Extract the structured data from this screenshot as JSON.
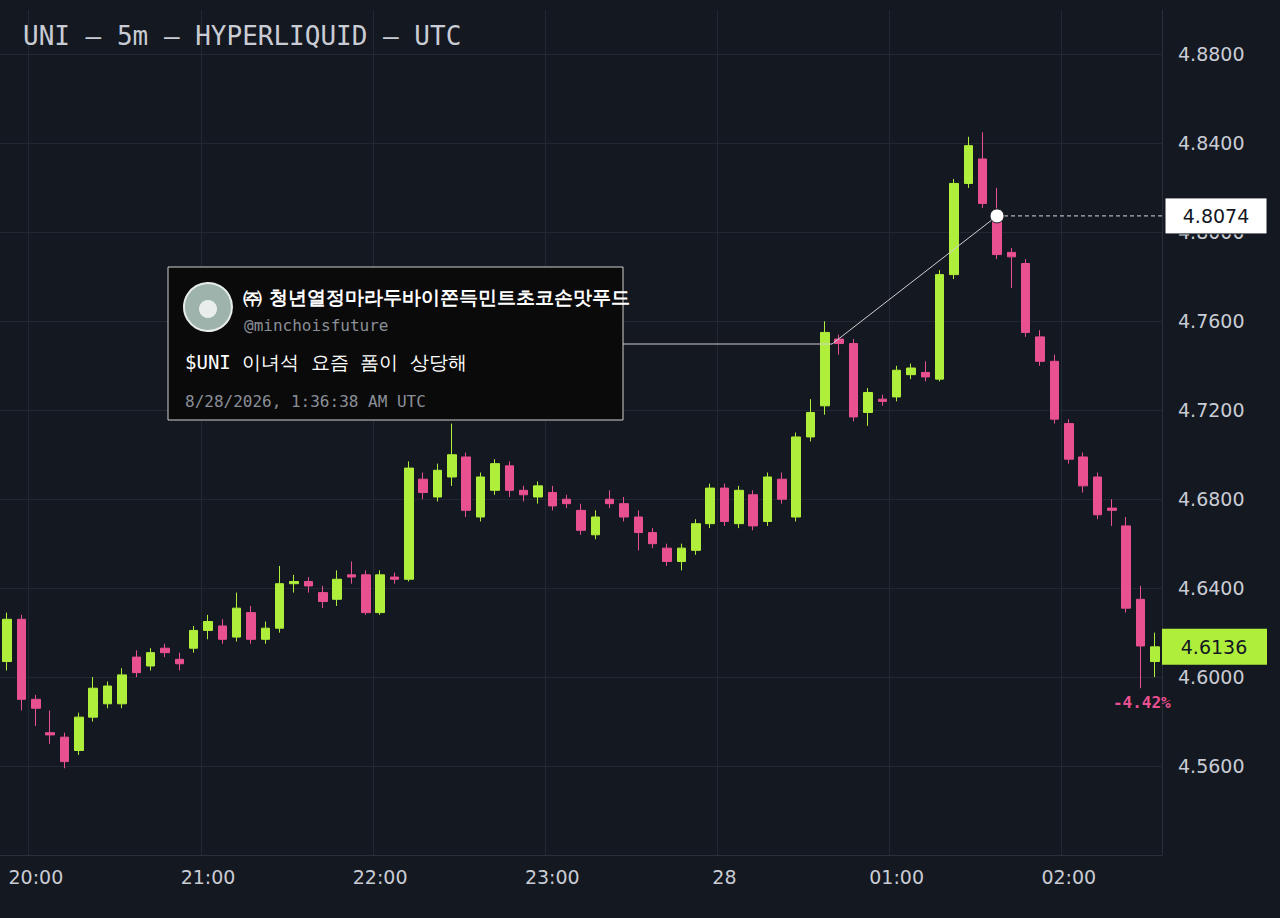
{
  "chart_data": {
    "type": "candlestick",
    "title": "UNI — 5m — HYPERLIQUID — UTC",
    "categories": [
      null,
      null,
      "20:00",
      null,
      null,
      null,
      null,
      null,
      null,
      null,
      null,
      null,
      null,
      null,
      "21:00",
      null,
      null,
      null,
      null,
      null,
      null,
      null,
      null,
      null,
      null,
      null,
      "22:00",
      null,
      null,
      null,
      null,
      null,
      null,
      null,
      null,
      null,
      null,
      null,
      "23:00",
      null,
      null,
      null,
      null,
      null,
      null,
      null,
      null,
      null,
      null,
      null,
      "28",
      null,
      null,
      null,
      null,
      null,
      null,
      null,
      null,
      null,
      null,
      null,
      "01:00",
      null,
      null,
      null,
      null,
      null,
      null,
      null,
      null,
      null,
      null,
      null,
      "02:00",
      null,
      null,
      null,
      null,
      null,
      null
    ],
    "open": [
      4.607,
      4.626,
      4.59,
      4.575,
      4.573,
      4.567,
      4.582,
      4.588,
      4.588,
      4.609,
      4.605,
      4.613,
      4.608,
      4.613,
      4.621,
      4.623,
      4.618,
      4.629,
      4.617,
      4.622,
      4.642,
      4.643,
      4.638,
      4.635,
      4.646,
      4.646,
      4.629,
      4.645,
      4.644,
      4.689,
      4.681,
      4.69,
      4.699,
      4.672,
      4.684,
      4.695,
      4.684,
      4.681,
      4.683,
      4.68,
      4.675,
      4.664,
      4.68,
      4.678,
      4.672,
      4.665,
      4.658,
      4.652,
      4.657,
      4.669,
      4.685,
      4.669,
      4.682,
      4.67,
      4.689,
      4.672,
      4.708,
      4.722,
      4.752,
      4.75,
      4.719,
      4.725,
      4.726,
      4.736,
      4.737,
      4.734,
      4.781,
      4.822,
      4.833,
      4.808,
      4.791,
      4.786,
      4.753,
      4.742,
      4.714,
      4.699,
      4.69,
      4.676,
      4.668,
      4.635,
      4.607
    ],
    "close": [
      4.626,
      4.59,
      4.586,
      4.574,
      4.562,
      4.582,
      4.595,
      4.596,
      4.601,
      4.602,
      4.611,
      4.611,
      4.606,
      4.621,
      4.625,
      4.617,
      4.631,
      4.617,
      4.622,
      4.642,
      4.643,
      4.641,
      4.634,
      4.644,
      4.645,
      4.629,
      4.646,
      4.644,
      4.694,
      4.683,
      4.693,
      4.7,
      4.675,
      4.69,
      4.696,
      4.684,
      4.682,
      4.686,
      4.677,
      4.678,
      4.666,
      4.672,
      4.678,
      4.672,
      4.665,
      4.66,
      4.652,
      4.658,
      4.669,
      4.685,
      4.67,
      4.684,
      4.668,
      4.69,
      4.68,
      4.708,
      4.719,
      4.755,
      4.75,
      4.717,
      4.728,
      4.724,
      4.738,
      4.739,
      4.735,
      4.781,
      4.822,
      4.839,
      4.813,
      4.79,
      4.789,
      4.755,
      4.742,
      4.716,
      4.698,
      4.686,
      4.673,
      4.675,
      4.631,
      4.614,
      4.6136
    ],
    "low": [
      4.603,
      4.585,
      4.578,
      4.57,
      4.559,
      4.565,
      4.58,
      4.586,
      4.586,
      4.6,
      4.603,
      4.609,
      4.603,
      4.611,
      4.617,
      4.615,
      4.616,
      4.615,
      4.615,
      4.62,
      4.638,
      4.638,
      4.631,
      4.632,
      4.642,
      4.628,
      4.628,
      4.642,
      4.643,
      4.68,
      4.679,
      4.686,
      4.672,
      4.67,
      4.682,
      4.681,
      4.679,
      4.678,
      4.675,
      4.676,
      4.664,
      4.662,
      4.676,
      4.67,
      4.657,
      4.658,
      4.65,
      4.648,
      4.655,
      4.667,
      4.668,
      4.667,
      4.666,
      4.668,
      4.678,
      4.67,
      4.706,
      4.718,
      4.745,
      4.715,
      4.713,
      4.722,
      4.724,
      4.734,
      4.733,
      4.733,
      4.779,
      4.82,
      4.811,
      4.788,
      4.775,
      4.753,
      4.74,
      4.714,
      4.696,
      4.683,
      4.671,
      4.668,
      4.629,
      4.595,
      4.6
    ],
    "high": [
      4.629,
      4.628,
      4.592,
      4.585,
      4.575,
      4.584,
      4.6,
      4.598,
      4.604,
      4.612,
      4.613,
      4.615,
      4.611,
      4.623,
      4.628,
      4.626,
      4.638,
      4.632,
      4.625,
      4.65,
      4.646,
      4.645,
      4.641,
      4.648,
      4.652,
      4.648,
      4.648,
      4.647,
      4.697,
      4.692,
      4.696,
      4.714,
      4.701,
      4.692,
      4.698,
      4.697,
      4.686,
      4.688,
      4.686,
      4.682,
      4.678,
      4.675,
      4.684,
      4.681,
      4.675,
      4.667,
      4.66,
      4.66,
      4.671,
      4.687,
      4.687,
      4.686,
      4.684,
      4.692,
      4.692,
      4.71,
      4.725,
      4.76,
      4.754,
      4.752,
      4.73,
      4.727,
      4.74,
      4.741,
      4.742,
      4.783,
      4.824,
      4.843,
      4.845,
      4.82,
      4.793,
      4.788,
      4.756,
      4.745,
      4.716,
      4.701,
      4.692,
      4.68,
      4.672,
      4.641,
      4.62
    ],
    "ylim": [
      4.52,
      4.9
    ],
    "yticks": [
      {
        "value": 4.56,
        "label": "4.5600"
      },
      {
        "value": 4.6,
        "label": "4.6000"
      },
      {
        "value": 4.64,
        "label": "4.6400"
      },
      {
        "value": 4.68,
        "label": "4.6800"
      },
      {
        "value": 4.72,
        "label": "4.7200"
      },
      {
        "value": 4.76,
        "label": "4.7600"
      },
      {
        "value": 4.8,
        "label": "4.8000"
      },
      {
        "value": 4.84,
        "label": "4.8400"
      },
      {
        "value": 4.88,
        "label": "4.8800"
      }
    ],
    "grid": true,
    "annotation": {
      "author": "㈜ 청년열정마라두바이쫀득민트초코손맛푸드",
      "handle": "@minchoisfuture",
      "text": "$UNI 이녀석 요즘 폼이 상당해",
      "time": "8/28/2026, 1:36:38 AM UTC",
      "price": 4.8074
    },
    "last_price": 4.6136,
    "change_label": "-4.42%"
  }
}
